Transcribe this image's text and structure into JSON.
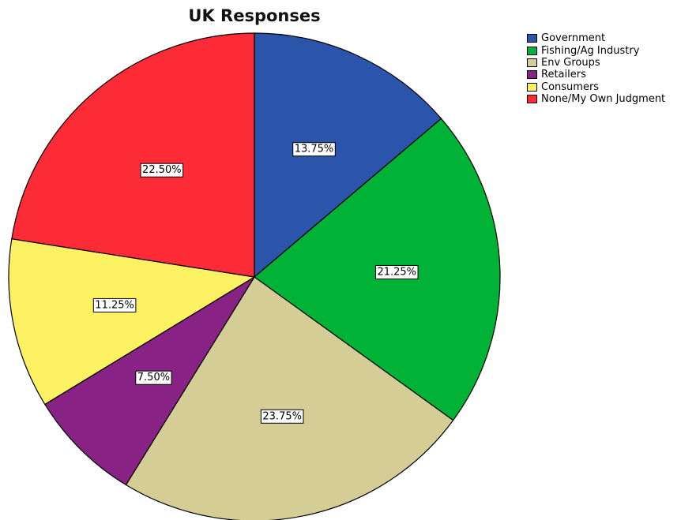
{
  "chart_data": {
    "type": "pie",
    "title": "UK Responses",
    "categories": [
      "Government",
      "Fishing/Ag Industry",
      "Env Groups",
      "Retailers",
      "Consumers",
      "None/My Own Judgment"
    ],
    "values": [
      13.75,
      21.25,
      23.75,
      7.5,
      11.25,
      22.5
    ],
    "data_labels": [
      "13.75%",
      "21.25%",
      "23.75%",
      "7.50%",
      "11.25%",
      "22.50%"
    ],
    "colors": [
      "#2a55aa",
      "#00b236",
      "#d4cd96",
      "#882284",
      "#fbf162",
      "#fc2b36"
    ],
    "start_angle_deg": 0,
    "direction": "clockwise",
    "legend_position": "top-right"
  }
}
